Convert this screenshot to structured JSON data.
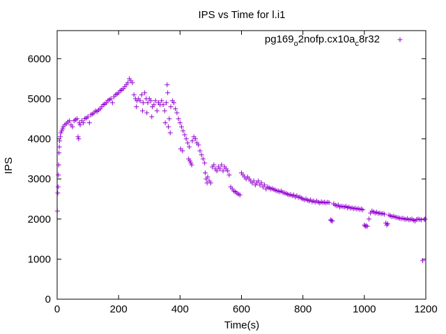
{
  "chart_data": {
    "type": "scatter",
    "title": "IPS vs Time for l.i1",
    "xlabel": "Time(s)",
    "ylabel": "IPS",
    "xlim": [
      0,
      1200
    ],
    "ylim": [
      0,
      6700
    ],
    "xticks": [
      0,
      200,
      400,
      600,
      800,
      1000,
      1200
    ],
    "yticks": [
      0,
      1000,
      2000,
      3000,
      4000,
      5000,
      6000
    ],
    "grid": false,
    "legend_position": "top-right",
    "legend": {
      "base": "pg169",
      "sub1": "o",
      "mid": "2nofp.cx10a",
      "sub2": "c",
      "tail": "8r32"
    },
    "color": "#9400d3",
    "series": [
      {
        "points": [
          [
            1,
            2200
          ],
          [
            2,
            2650
          ],
          [
            3,
            2800
          ],
          [
            4,
            3100
          ],
          [
            5,
            3350
          ],
          [
            6,
            3650
          ],
          [
            7,
            3800
          ],
          [
            8,
            3950
          ],
          [
            10,
            4050
          ],
          [
            12,
            4150
          ],
          [
            15,
            4200
          ],
          [
            18,
            4250
          ],
          [
            20,
            4300
          ],
          [
            25,
            4350
          ],
          [
            30,
            4380
          ],
          [
            35,
            4420
          ],
          [
            40,
            4450
          ],
          [
            45,
            4350
          ],
          [
            50,
            4300
          ],
          [
            55,
            4450
          ],
          [
            60,
            4480
          ],
          [
            65,
            4500
          ],
          [
            68,
            4050
          ],
          [
            70,
            4000
          ],
          [
            72,
            4400
          ],
          [
            75,
            4350
          ],
          [
            80,
            4450
          ],
          [
            85,
            4400
          ],
          [
            90,
            4500
          ],
          [
            95,
            4520
          ],
          [
            100,
            4550
          ],
          [
            105,
            4400
          ],
          [
            110,
            4600
          ],
          [
            115,
            4620
          ],
          [
            120,
            4650
          ],
          [
            125,
            4700
          ],
          [
            130,
            4680
          ],
          [
            135,
            4720
          ],
          [
            140,
            4750
          ],
          [
            145,
            4800
          ],
          [
            150,
            4850
          ],
          [
            155,
            4870
          ],
          [
            160,
            4900
          ],
          [
            165,
            4950
          ],
          [
            170,
            4980
          ],
          [
            175,
            5000
          ],
          [
            180,
            4900
          ],
          [
            185,
            5050
          ],
          [
            190,
            5100
          ],
          [
            195,
            5120
          ],
          [
            200,
            5150
          ],
          [
            205,
            5200
          ],
          [
            210,
            5220
          ],
          [
            215,
            5250
          ],
          [
            220,
            5300
          ],
          [
            225,
            5350
          ],
          [
            230,
            5400
          ],
          [
            235,
            5500
          ],
          [
            240,
            5450
          ],
          [
            245,
            5400
          ],
          [
            250,
            5100
          ],
          [
            255,
            5000
          ],
          [
            258,
            4800
          ],
          [
            260,
            4950
          ],
          [
            265,
            5000
          ],
          [
            270,
            4950
          ],
          [
            275,
            5100
          ],
          [
            278,
            4700
          ],
          [
            280,
            4900
          ],
          [
            285,
            5150
          ],
          [
            290,
            5000
          ],
          [
            292,
            4650
          ],
          [
            295,
            4900
          ],
          [
            300,
            5000
          ],
          [
            305,
            4950
          ],
          [
            308,
            4550
          ],
          [
            310,
            4800
          ],
          [
            315,
            4850
          ],
          [
            320,
            4950
          ],
          [
            325,
            4700
          ],
          [
            330,
            4900
          ],
          [
            335,
            4850
          ],
          [
            340,
            4950
          ],
          [
            345,
            4850
          ],
          [
            350,
            4700
          ],
          [
            352,
            4400
          ],
          [
            355,
            4900
          ],
          [
            358,
            5350
          ],
          [
            360,
            5150
          ],
          [
            362,
            4300
          ],
          [
            365,
            4500
          ],
          [
            368,
            4150
          ],
          [
            370,
            4800
          ],
          [
            375,
            4950
          ],
          [
            380,
            4900
          ],
          [
            385,
            4750
          ],
          [
            390,
            4650
          ],
          [
            395,
            4500
          ],
          [
            400,
            4400
          ],
          [
            402,
            3750
          ],
          [
            405,
            4300
          ],
          [
            408,
            3700
          ],
          [
            410,
            4200
          ],
          [
            415,
            4100
          ],
          [
            420,
            4000
          ],
          [
            425,
            3900
          ],
          [
            428,
            3500
          ],
          [
            430,
            3800
          ],
          [
            432,
            3450
          ],
          [
            435,
            3400
          ],
          [
            438,
            3350
          ],
          [
            440,
            3950
          ],
          [
            445,
            4050
          ],
          [
            450,
            4000
          ],
          [
            455,
            3900
          ],
          [
            460,
            3850
          ],
          [
            465,
            3700
          ],
          [
            470,
            3600
          ],
          [
            475,
            3500
          ],
          [
            480,
            3400
          ],
          [
            482,
            3150
          ],
          [
            485,
            3000
          ],
          [
            488,
            2900
          ],
          [
            490,
            3050
          ],
          [
            495,
            2950
          ],
          [
            500,
            2900
          ],
          [
            505,
            3300
          ],
          [
            510,
            3350
          ],
          [
            515,
            3250
          ],
          [
            520,
            3200
          ],
          [
            525,
            3300
          ],
          [
            530,
            3250
          ],
          [
            535,
            3350
          ],
          [
            540,
            3200
          ],
          [
            545,
            3300
          ],
          [
            550,
            3250
          ],
          [
            555,
            3200
          ],
          [
            560,
            3100
          ],
          [
            565,
            2800
          ],
          [
            570,
            2750
          ],
          [
            575,
            2700
          ],
          [
            580,
            2680
          ],
          [
            585,
            2650
          ],
          [
            590,
            2620
          ],
          [
            595,
            2600
          ],
          [
            600,
            3150
          ],
          [
            605,
            3100
          ],
          [
            610,
            3050
          ],
          [
            615,
            3000
          ],
          [
            620,
            3050
          ],
          [
            625,
            3000
          ],
          [
            630,
            2950
          ],
          [
            635,
            2900
          ],
          [
            640,
            2950
          ],
          [
            645,
            2850
          ],
          [
            650,
            2900
          ],
          [
            655,
            2950
          ],
          [
            660,
            2850
          ],
          [
            665,
            2900
          ],
          [
            670,
            2800
          ],
          [
            675,
            2850
          ],
          [
            680,
            2750
          ],
          [
            685,
            2800
          ],
          [
            690,
            2780
          ],
          [
            695,
            2750
          ],
          [
            700,
            2760
          ],
          [
            705,
            2740
          ],
          [
            710,
            2720
          ],
          [
            715,
            2700
          ],
          [
            720,
            2700
          ],
          [
            725,
            2680
          ],
          [
            730,
            2700
          ],
          [
            735,
            2660
          ],
          [
            740,
            2650
          ],
          [
            745,
            2640
          ],
          [
            750,
            2620
          ],
          [
            755,
            2600
          ],
          [
            760,
            2610
          ],
          [
            765,
            2580
          ],
          [
            770,
            2600
          ],
          [
            775,
            2550
          ],
          [
            780,
            2580
          ],
          [
            785,
            2540
          ],
          [
            790,
            2550
          ],
          [
            795,
            2520
          ],
          [
            800,
            2500
          ],
          [
            805,
            2480
          ],
          [
            810,
            2500
          ],
          [
            815,
            2470
          ],
          [
            820,
            2450
          ],
          [
            825,
            2480
          ],
          [
            830,
            2430
          ],
          [
            835,
            2450
          ],
          [
            840,
            2420
          ],
          [
            845,
            2450
          ],
          [
            850,
            2420
          ],
          [
            855,
            2400
          ],
          [
            860,
            2430
          ],
          [
            865,
            2410
          ],
          [
            870,
            2420
          ],
          [
            875,
            2400
          ],
          [
            880,
            2420
          ],
          [
            885,
            2410
          ],
          [
            890,
            1980
          ],
          [
            893,
            1960
          ],
          [
            896,
            1950
          ],
          [
            900,
            2380
          ],
          [
            905,
            2350
          ],
          [
            910,
            2330
          ],
          [
            915,
            2350
          ],
          [
            920,
            2300
          ],
          [
            925,
            2320
          ],
          [
            930,
            2310
          ],
          [
            935,
            2300
          ],
          [
            940,
            2320
          ],
          [
            945,
            2280
          ],
          [
            950,
            2300
          ],
          [
            955,
            2270
          ],
          [
            960,
            2280
          ],
          [
            965,
            2260
          ],
          [
            970,
            2270
          ],
          [
            975,
            2250
          ],
          [
            980,
            2260
          ],
          [
            985,
            2240
          ],
          [
            990,
            2250
          ],
          [
            995,
            2230
          ],
          [
            1000,
            1850
          ],
          [
            1003,
            1820
          ],
          [
            1006,
            1830
          ],
          [
            1010,
            1820
          ],
          [
            1015,
            2000
          ],
          [
            1020,
            2150
          ],
          [
            1025,
            2200
          ],
          [
            1030,
            2180
          ],
          [
            1035,
            2150
          ],
          [
            1040,
            2170
          ],
          [
            1045,
            2140
          ],
          [
            1050,
            2150
          ],
          [
            1055,
            2130
          ],
          [
            1060,
            2140
          ],
          [
            1065,
            2120
          ],
          [
            1070,
            1900
          ],
          [
            1073,
            1850
          ],
          [
            1076,
            1880
          ],
          [
            1080,
            2100
          ],
          [
            1085,
            2080
          ],
          [
            1090,
            2060
          ],
          [
            1095,
            2070
          ],
          [
            1100,
            2050
          ],
          [
            1105,
            2040
          ],
          [
            1110,
            2030
          ],
          [
            1115,
            2020
          ],
          [
            1120,
            2010
          ],
          [
            1125,
            2020
          ],
          [
            1130,
            2000
          ],
          [
            1135,
            1990
          ],
          [
            1140,
            2010
          ],
          [
            1145,
            1980
          ],
          [
            1150,
            1990
          ],
          [
            1155,
            2000
          ],
          [
            1160,
            1970
          ],
          [
            1165,
            1950
          ],
          [
            1170,
            1990
          ],
          [
            1175,
            2000
          ],
          [
            1180,
            1990
          ],
          [
            1185,
            1980
          ],
          [
            1190,
            960
          ],
          [
            1195,
            1990
          ],
          [
            1198,
            2000
          ]
        ]
      }
    ]
  }
}
